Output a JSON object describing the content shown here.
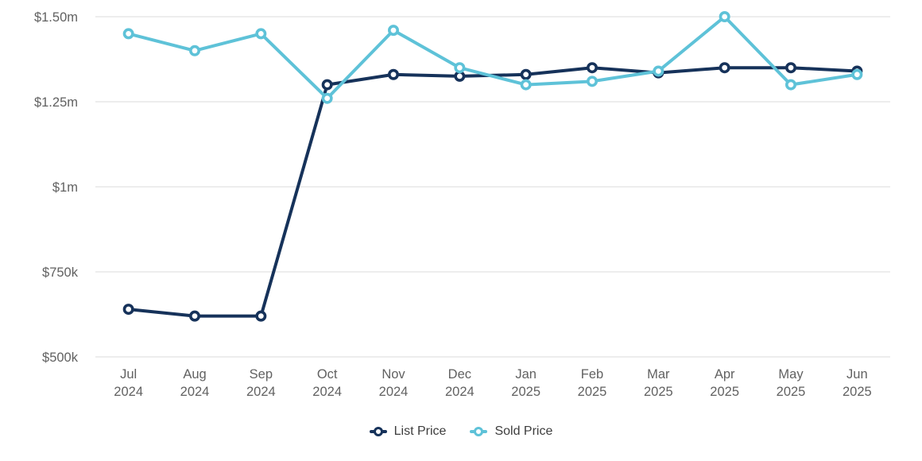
{
  "chart_data": {
    "type": "line",
    "title": "",
    "xlabel": "",
    "ylabel": "",
    "categories": [
      {
        "month": "Jul",
        "year": "2024"
      },
      {
        "month": "Aug",
        "year": "2024"
      },
      {
        "month": "Sep",
        "year": "2024"
      },
      {
        "month": "Oct",
        "year": "2024"
      },
      {
        "month": "Nov",
        "year": "2024"
      },
      {
        "month": "Dec",
        "year": "2024"
      },
      {
        "month": "Jan",
        "year": "2025"
      },
      {
        "month": "Feb",
        "year": "2025"
      },
      {
        "month": "Mar",
        "year": "2025"
      },
      {
        "month": "Apr",
        "year": "2025"
      },
      {
        "month": "May",
        "year": "2025"
      },
      {
        "month": "Jun",
        "year": "2025"
      }
    ],
    "series": [
      {
        "name": "List Price",
        "color": "#16325A",
        "values": [
          640000,
          620000,
          620000,
          1300000,
          1330000,
          1325000,
          1330000,
          1350000,
          1335000,
          1350000,
          1350000,
          1340000
        ]
      },
      {
        "name": "Sold Price",
        "color": "#5EC2D8",
        "values": [
          1450000,
          1400000,
          1450000,
          1260000,
          1460000,
          1350000,
          1300000,
          1310000,
          1340000,
          1500000,
          1300000,
          1330000
        ]
      }
    ],
    "y_axis": {
      "min": 500000,
      "max": 1500000,
      "ticks": [
        {
          "value": 500000,
          "label": "$500k"
        },
        {
          "value": 750000,
          "label": "$750k"
        },
        {
          "value": 1000000,
          "label": "$1m"
        },
        {
          "value": 1250000,
          "label": "$1.25m"
        },
        {
          "value": 1500000,
          "label": "$1.50m"
        }
      ]
    },
    "grid": true,
    "legend_position": "bottom"
  },
  "colors": {
    "background": "#FFFFFF",
    "gridline": "#E7E7E7",
    "axis_label": "#616161",
    "legend_text": "#3D3D3D"
  }
}
